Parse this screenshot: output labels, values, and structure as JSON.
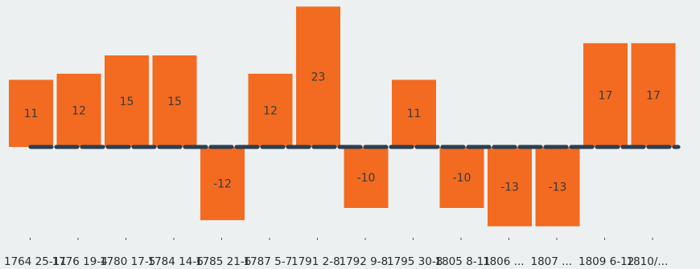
{
  "chart_data": {
    "type": "bar",
    "categories": [
      "1764 25-11",
      "1776 19-4",
      "1780 17-5",
      "1784 14-6",
      "1785 21-6",
      "1787 5-7",
      "1791 2-8",
      "1792 9-8",
      "1795 30-8",
      "1805 8-11",
      "1806 ...",
      "1807 ...",
      "1809 6-12",
      "1810/..."
    ],
    "series": [
      {
        "values": [
          11,
          12,
          15,
          15,
          -12,
          12,
          23,
          -10,
          11,
          -10,
          -13,
          -13,
          17,
          17
        ]
      }
    ],
    "ylim": [
      -14,
      24
    ],
    "grid": false,
    "baseline": 0,
    "colors": {
      "bar": "#f26b21",
      "baseline": "#2c3e50",
      "background": "#ecf0f1",
      "text": "#3a3a3a"
    }
  }
}
